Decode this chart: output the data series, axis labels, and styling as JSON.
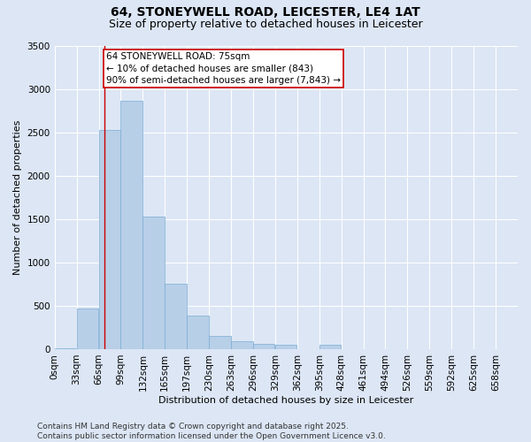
{
  "title_line1": "64, STONEYWELL ROAD, LEICESTER, LE4 1AT",
  "title_line2": "Size of property relative to detached houses in Leicester",
  "xlabel": "Distribution of detached houses by size in Leicester",
  "ylabel": "Number of detached properties",
  "bar_color": "#b8cfe8",
  "bar_edge_color": "#7aadd4",
  "background_color": "#dce6f5",
  "grid_color": "#ffffff",
  "categories": [
    "0sqm",
    "33sqm",
    "66sqm",
    "99sqm",
    "132sqm",
    "165sqm",
    "197sqm",
    "230sqm",
    "263sqm",
    "296sqm",
    "329sqm",
    "362sqm",
    "395sqm",
    "428sqm",
    "461sqm",
    "494sqm",
    "526sqm",
    "559sqm",
    "592sqm",
    "625sqm",
    "658sqm"
  ],
  "values": [
    5,
    470,
    2530,
    2860,
    1530,
    750,
    390,
    150,
    90,
    60,
    50,
    0,
    50,
    0,
    0,
    0,
    0,
    0,
    0,
    0,
    0
  ],
  "property_line_x": 75,
  "bin_width": 33,
  "annotation_text": "64 STONEYWELL ROAD: 75sqm\n← 10% of detached houses are smaller (843)\n90% of semi-detached houses are larger (7,843) →",
  "annotation_box_color": "#ffffff",
  "annotation_box_edge": "#cc0000",
  "vline_color": "#cc0000",
  "ylim": [
    0,
    3500
  ],
  "yticks": [
    0,
    500,
    1000,
    1500,
    2000,
    2500,
    3000,
    3500
  ],
  "footer_line1": "Contains HM Land Registry data © Crown copyright and database right 2025.",
  "footer_line2": "Contains public sector information licensed under the Open Government Licence v3.0.",
  "title_fontsize": 10,
  "subtitle_fontsize": 9,
  "axis_label_fontsize": 8,
  "tick_fontsize": 7.5,
  "annotation_fontsize": 7.5,
  "footer_fontsize": 6.5
}
